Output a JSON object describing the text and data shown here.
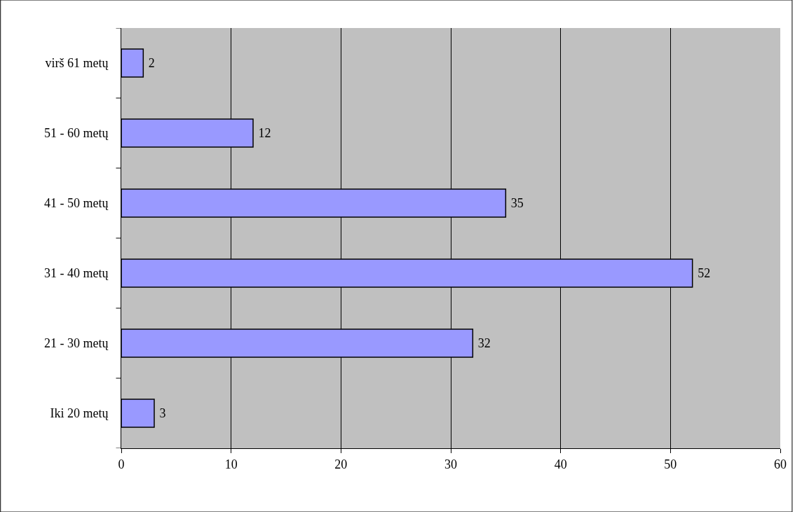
{
  "chart_data": {
    "type": "bar",
    "orientation": "horizontal",
    "categories": [
      "virš 61 metų",
      "51 - 60 metų",
      "41 - 50 metų",
      "31 - 40 metų",
      "21 - 30 metų",
      "Iki 20 metų"
    ],
    "values": [
      2,
      12,
      35,
      52,
      32,
      3
    ],
    "color": "#9999ff",
    "xlim": [
      0,
      60
    ],
    "xticks": [
      0,
      10,
      20,
      30,
      40,
      50,
      60
    ],
    "grid": "x",
    "data_labels": true
  }
}
